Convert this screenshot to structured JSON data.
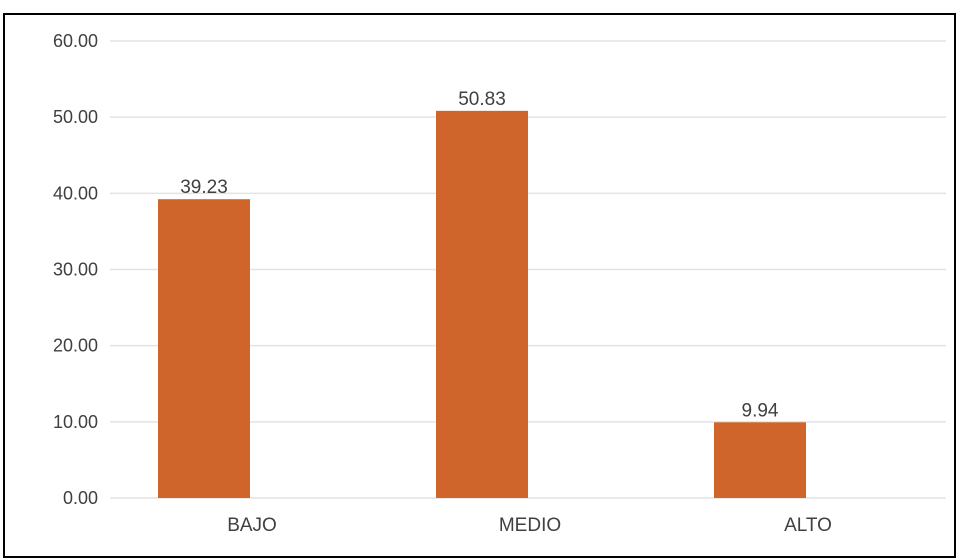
{
  "chart_data": {
    "type": "bar",
    "categories": [
      "BAJO",
      "MEDIO",
      "ALTO"
    ],
    "values": [
      39.23,
      50.83,
      9.94
    ],
    "value_labels": [
      "39.23",
      "50.83",
      "9.94"
    ],
    "yticks": [
      "0.00",
      "10.00",
      "20.00",
      "30.00",
      "40.00",
      "50.00",
      "60.00"
    ],
    "ylim": [
      0,
      60
    ],
    "grid": true,
    "legend": "none",
    "title": "",
    "xlabel": "",
    "ylabel": ""
  },
  "colors": {
    "bar": "#d0652c",
    "grid": "#e3e3e3",
    "text": "#404040",
    "border": "#000000"
  }
}
